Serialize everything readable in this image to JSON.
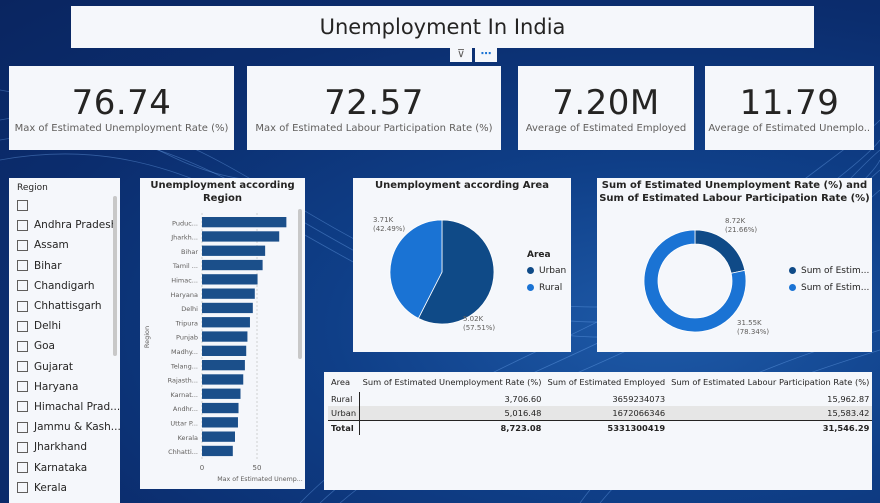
{
  "dashboard": {
    "title": "Unemployment In India"
  },
  "header_icons": [
    {
      "name": "filter-icon",
      "glyph": "⊽"
    },
    {
      "name": "more-options-icon",
      "glyph": "⋯"
    }
  ],
  "kpis": [
    {
      "value": "76.74",
      "label": "Max of  Estimated Unemployment Rate (%)"
    },
    {
      "value": "72.57",
      "label": "Max of  Estimated Labour Participation Rate (%)"
    },
    {
      "value": "7.20M",
      "label": "Average of  Estimated Employed"
    },
    {
      "value": "11.79",
      "label": "Average of  Estimated Unemplo..."
    }
  ],
  "region_slicer": {
    "header": "Region",
    "items": [
      "",
      "Andhra Pradesh",
      "Assam",
      "Bihar",
      "Chandigarh",
      "Chhattisgarh",
      "Delhi",
      "Goa",
      "Gujarat",
      "Haryana",
      "Himachal Prad...",
      "Jammu & Kash...",
      "Jharkhand",
      "Karnataka",
      "Kerala"
    ]
  },
  "colors": {
    "primary": "#0f4a87",
    "secondary": "#1a73d4",
    "bar": "#1b4f8a",
    "card": "#f5f7fb"
  },
  "chart_data": [
    {
      "type": "bar",
      "title": "Unemployment according Region",
      "orientation": "horizontal",
      "categories": [
        "Puduc...",
        "Jharkh...",
        "Bihar",
        "Tamil ...",
        "Himac...",
        "Haryana",
        "Delhi",
        "Tripura",
        "Punjab",
        "Madhy...",
        "Telang...",
        "Rajasth...",
        "Karnat...",
        "Andhr...",
        "Uttar P...",
        "Kerala",
        "Chhatti..."
      ],
      "values": [
        76.7,
        70.2,
        57.4,
        55.1,
        50.5,
        48,
        46.2,
        43.6,
        41.3,
        40.2,
        39,
        37.5,
        35,
        33.2,
        32.7,
        30,
        28
      ],
      "xlabel": "Max of Estimated Unemp...",
      "ylabel": "Region",
      "xlim": [
        0,
        80
      ],
      "xticks": [
        "0",
        "50"
      ]
    },
    {
      "type": "pie",
      "title": "Unemployment according Area",
      "legend_title": "Area",
      "slices": [
        {
          "name": "Urban",
          "value": 5.02,
          "label": "5.02K",
          "pct": "(57.51%)",
          "color": "#0f4a87"
        },
        {
          "name": "Rural",
          "value": 3.71,
          "label": "3.71K",
          "pct": "(42.49%)",
          "color": "#1a73d4"
        }
      ]
    },
    {
      "type": "pie",
      "title": "Sum of Estimated Unemployment Rate (%) and Sum of Estimated Labour Participation Rate (%)",
      "donut": true,
      "slices": [
        {
          "name": "Sum of  Estim...",
          "value": 8.72,
          "label": "8.72K",
          "pct": "(21.66%)",
          "color": "#0f4a87"
        },
        {
          "name": "Sum of  Estim...",
          "value": 31.55,
          "label": "31.55K",
          "pct": "(78.34%)",
          "color": "#1a73d4"
        }
      ]
    },
    {
      "type": "table",
      "columns": [
        "Area",
        "Sum of Estimated Unemployment Rate (%)",
        "Sum of Estimated Employed",
        "Sum of Estimated Labour Participation Rate (%)"
      ],
      "rows": [
        [
          "Rural",
          "3,706.60",
          "3659234073",
          "15,962.87"
        ],
        [
          "Urban",
          "5,016.48",
          "1672066346",
          "15,583.42"
        ]
      ],
      "total": [
        "Total",
        "8,723.08",
        "5331300419",
        "31,546.29"
      ]
    }
  ]
}
